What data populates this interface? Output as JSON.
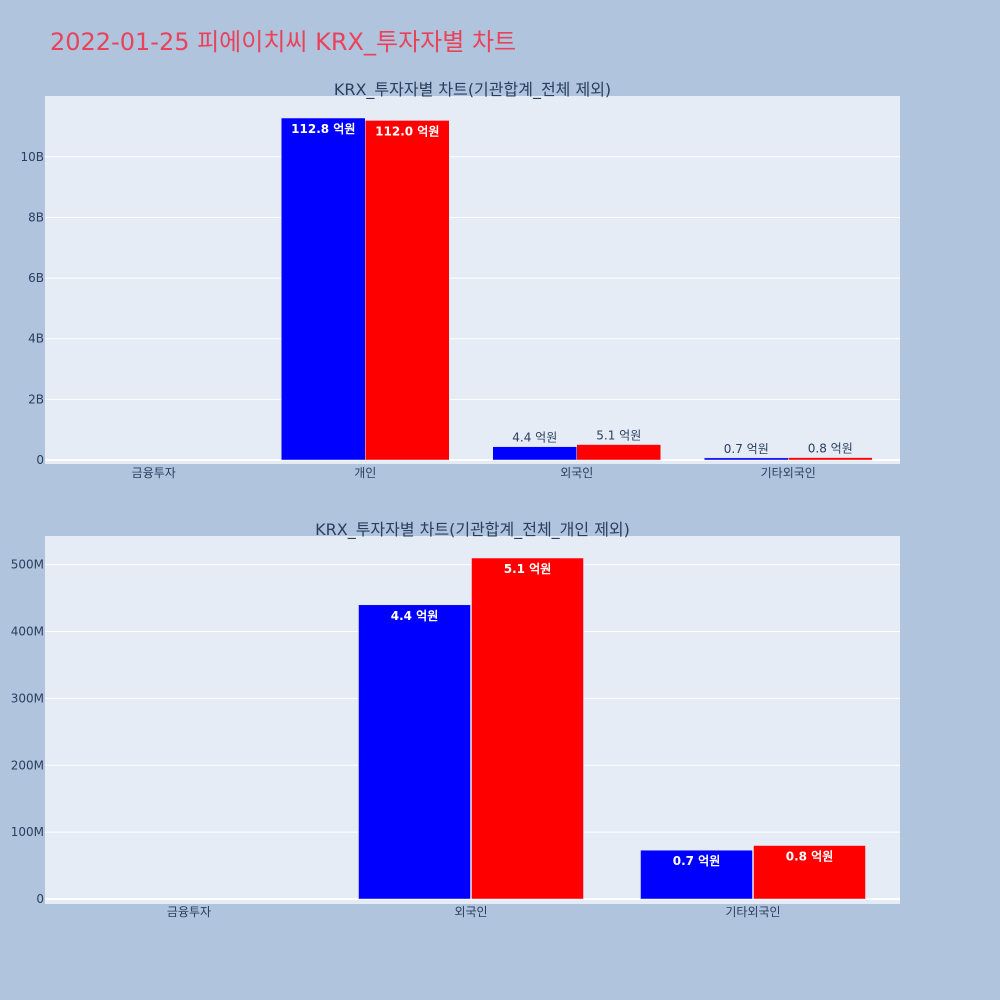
{
  "title": "2022-01-25 피에이치씨 KRX_투자자별 차트",
  "colors": {
    "series_a": "#0000ff",
    "series_b": "#ff0000",
    "plot_bg": "#e5ecf6",
    "page_bg": "#b0c4de",
    "title": "#e8435a"
  },
  "chart_data": [
    {
      "type": "bar",
      "title": "KRX_투자자별 차트(기관합계_전체 제외)",
      "categories": [
        "금융투자",
        "개인",
        "외국인",
        "기타외국인"
      ],
      "ylim": [
        0,
        11500000000
      ],
      "yticks": [
        0,
        2000000000,
        4000000000,
        6000000000,
        8000000000,
        10000000000
      ],
      "ytick_labels": [
        "0",
        "2B",
        "4B",
        "6B",
        "8B",
        "10B"
      ],
      "grid": true,
      "series": [
        {
          "color": "#0000ff",
          "values": [
            0,
            11280000000,
            440000000,
            70000000
          ],
          "labels": [
            "",
            "112.8 억원",
            "4.4 억원",
            "0.7 억원"
          ]
        },
        {
          "color": "#ff0000",
          "values": [
            0,
            11200000000,
            510000000,
            80000000
          ],
          "labels": [
            "",
            "112.0 억원",
            "5.1 억원",
            "0.8 억원"
          ]
        }
      ]
    },
    {
      "type": "bar",
      "title": "KRX_투자자별 차트(기관합계_전체_개인 제외)",
      "categories": [
        "금융투자",
        "외국인",
        "기타외국인"
      ],
      "ylim": [
        0,
        540000000
      ],
      "yticks": [
        0,
        100000000,
        200000000,
        300000000,
        400000000,
        500000000
      ],
      "ytick_labels": [
        "0",
        "100M",
        "200M",
        "300M",
        "400M",
        "500M"
      ],
      "grid": true,
      "series": [
        {
          "color": "#0000ff",
          "values": [
            0,
            440000000,
            73000000
          ],
          "labels": [
            "",
            "4.4 억원",
            "0.7 억원"
          ]
        },
        {
          "color": "#ff0000",
          "values": [
            0,
            510000000,
            80000000
          ],
          "labels": [
            "",
            "5.1 억원",
            "0.8 억원"
          ]
        }
      ]
    }
  ]
}
